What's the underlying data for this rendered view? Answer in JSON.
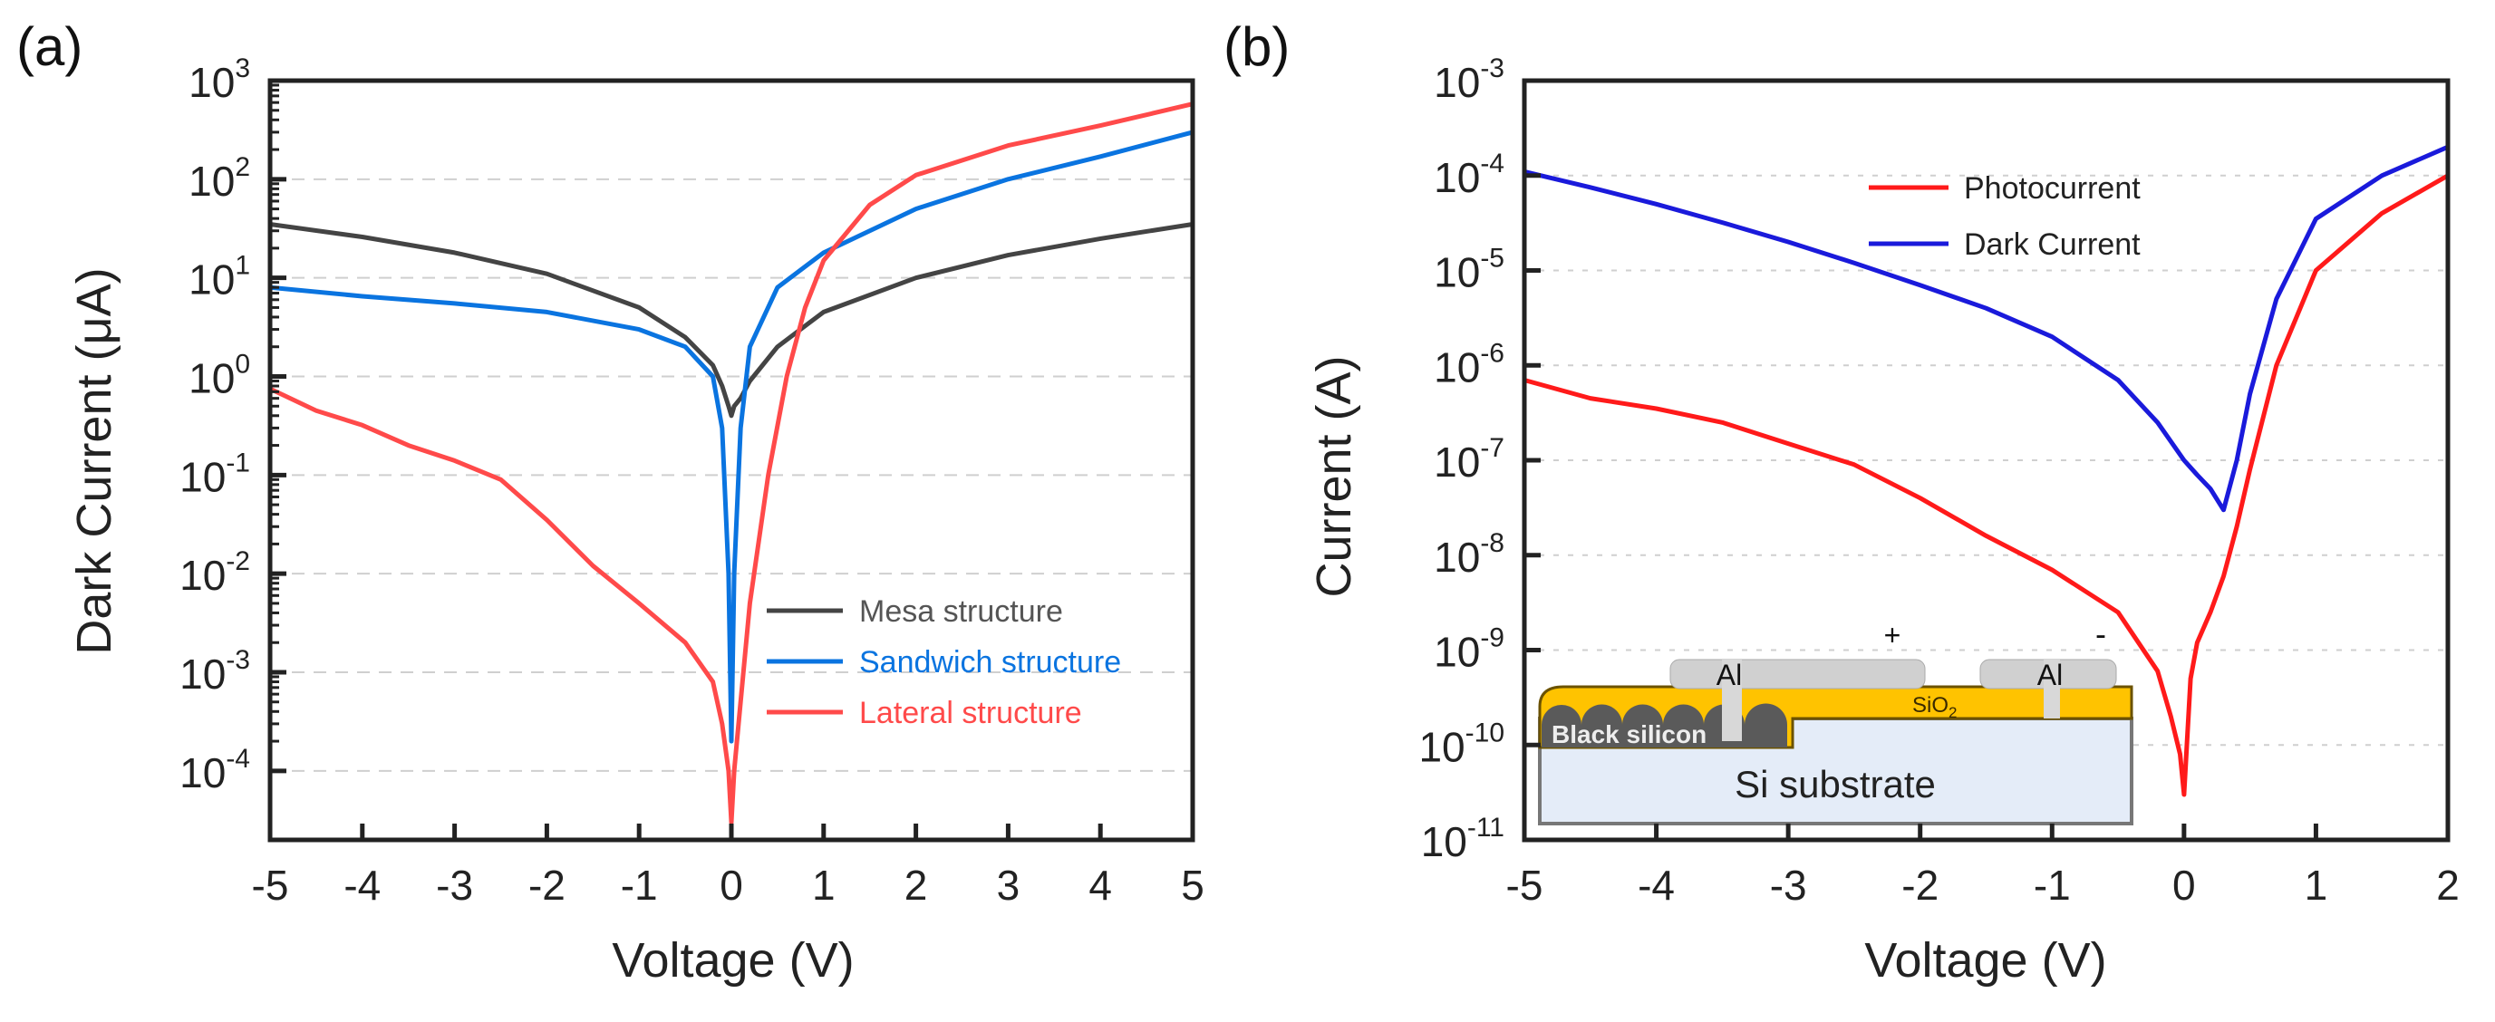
{
  "chart_data": [
    {
      "type": "line",
      "panel_label": "(a)",
      "xlabel": "Voltage (V)",
      "ylabel": "Dark Current (μA)",
      "yscale": "log",
      "xlim": [
        -5,
        5
      ],
      "ylim_log10": [
        -4.7,
        3
      ],
      "xticks": [
        "-5",
        "-4",
        "-3",
        "-2",
        "-1",
        "0",
        "1",
        "2",
        "3",
        "4",
        "5"
      ],
      "yticks": [
        {
          "base": "10",
          "exp": "3"
        },
        {
          "base": "10",
          "exp": "2"
        },
        {
          "base": "10",
          "exp": "1"
        },
        {
          "base": "10",
          "exp": "0"
        },
        {
          "base": "10",
          "exp": "-1"
        },
        {
          "base": "10",
          "exp": "-2"
        },
        {
          "base": "10",
          "exp": "-3"
        },
        {
          "base": "10",
          "exp": "-4"
        }
      ],
      "grid": "horizontal dashed",
      "legend_position": "center-right",
      "series": [
        {
          "name": "Mesa structure",
          "color": "#444444",
          "x": [
            -5,
            -4,
            -3,
            -2,
            -1,
            -0.5,
            -0.2,
            -0.1,
            -0.03,
            0,
            0.03,
            0.1,
            0.2,
            0.5,
            1,
            2,
            3,
            4,
            5
          ],
          "y": [
            35,
            26,
            18,
            11,
            5,
            2.5,
            1.3,
            0.8,
            0.5,
            0.4,
            0.5,
            0.6,
            0.9,
            2,
            4.5,
            10,
            17,
            25,
            35
          ]
        },
        {
          "name": "Sandwich structure",
          "color": "#0a74e0",
          "x": [
            -5,
            -4,
            -3,
            -2,
            -1,
            -0.5,
            -0.2,
            -0.1,
            -0.03,
            0,
            0.03,
            0.1,
            0.2,
            0.5,
            1,
            2,
            3,
            4,
            5
          ],
          "y": [
            8,
            6.5,
            5.5,
            4.5,
            3,
            2,
            1,
            0.3,
            0.01,
            0.0002,
            0.01,
            0.3,
            2,
            8,
            18,
            50,
            100,
            170,
            300
          ]
        },
        {
          "name": "Lateral structure",
          "color": "#ff4a4a",
          "x": [
            -5,
            -4.5,
            -4,
            -3.5,
            -3,
            -2.5,
            -2,
            -1.5,
            -1,
            -0.5,
            -0.2,
            -0.1,
            -0.03,
            0,
            0.03,
            0.1,
            0.2,
            0.4,
            0.6,
            0.8,
            1,
            1.5,
            2,
            3,
            4,
            5
          ],
          "y": [
            0.75,
            0.45,
            0.32,
            0.2,
            0.14,
            0.09,
            0.035,
            0.012,
            0.005,
            0.002,
            0.0008,
            0.0003,
            0.0001,
            3e-05,
            0.0001,
            0.0005,
            0.005,
            0.1,
            1,
            5,
            15,
            55,
            110,
            220,
            350,
            580
          ]
        }
      ]
    },
    {
      "type": "line",
      "panel_label": "(b)",
      "xlabel": "Voltage (V)",
      "ylabel": "Current (A)",
      "yscale": "log",
      "xlim": [
        -5,
        2
      ],
      "ylim_log10": [
        -11,
        -3
      ],
      "xticks": [
        "-5",
        "-4",
        "-3",
        "-2",
        "-1",
        "0",
        "1",
        "2"
      ],
      "yticks": [
        {
          "base": "10",
          "exp": "-3"
        },
        {
          "base": "10",
          "exp": "-4"
        },
        {
          "base": "10",
          "exp": "-5"
        },
        {
          "base": "10",
          "exp": "-6"
        },
        {
          "base": "10",
          "exp": "-7"
        },
        {
          "base": "10",
          "exp": "-8"
        },
        {
          "base": "10",
          "exp": "-9"
        },
        {
          "base": "10",
          "exp": "-10"
        },
        {
          "base": "10",
          "exp": "-11"
        }
      ],
      "grid": "horizontal dotted",
      "legend_position": "top-center",
      "series": [
        {
          "name": "Photocurrent",
          "color": "#ff1a1a",
          "x": [
            -5,
            -4.5,
            -4,
            -3.5,
            -3,
            -2.5,
            -2,
            -1.5,
            -1,
            -0.5,
            -0.2,
            -0.1,
            -0.03,
            0,
            0.05,
            0.1,
            0.2,
            0.3,
            0.4,
            0.5,
            0.7,
            1,
            1.5,
            2
          ],
          "y": [
            7e-07,
            4.5e-07,
            3.5e-07,
            2.5e-07,
            1.5e-07,
            9e-08,
            4e-08,
            1.6e-08,
            7e-09,
            2.5e-09,
            6e-10,
            2e-10,
            8e-11,
            3e-11,
            5e-10,
            1.2e-09,
            2.5e-09,
            6e-09,
            2e-08,
            8e-08,
            1e-06,
            1e-05,
            4e-05,
            0.0001
          ]
        },
        {
          "name": "Dark Current",
          "color": "#1a1adb",
          "x": [
            -5,
            -4.5,
            -4,
            -3.5,
            -3,
            -2.5,
            -2,
            -1.5,
            -1,
            -0.5,
            -0.2,
            0,
            0.1,
            0.2,
            0.3,
            0.4,
            0.5,
            0.7,
            1,
            1.5,
            2
          ],
          "y": [
            0.00011,
            7.5e-05,
            5e-05,
            3.2e-05,
            2e-05,
            1.2e-05,
            7e-06,
            4e-06,
            2e-06,
            7e-07,
            2.5e-07,
            1e-07,
            7e-08,
            5e-08,
            3e-08,
            1e-07,
            5e-07,
            5e-06,
            3.5e-05,
            0.0001,
            0.0002
          ]
        }
      ],
      "inset": {
        "plus": "+",
        "minus": "-",
        "al_left": "Al",
        "al_right": "Al",
        "sio2": "SiO",
        "sio2_sub": "2",
        "black_silicon": "Black silicon",
        "substrate": "Si substrate"
      }
    }
  ]
}
